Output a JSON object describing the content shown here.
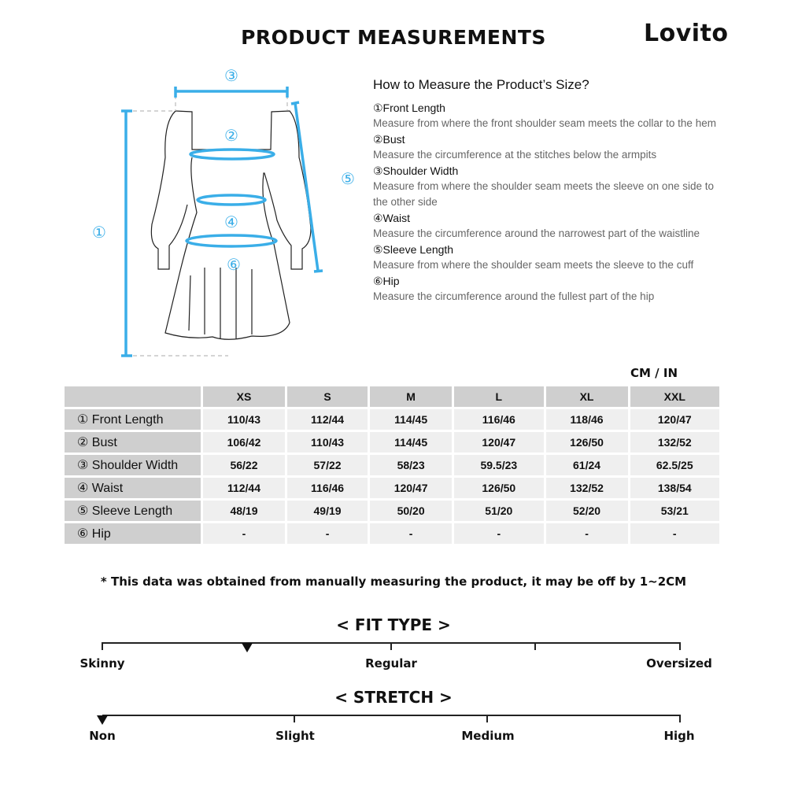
{
  "header": {
    "title": "PRODUCT MEASUREMENTS",
    "logo": "Lovito"
  },
  "diagram": {
    "markers": [
      "①",
      "②",
      "③",
      "④",
      "⑤",
      "⑥"
    ],
    "accent_color": "#3aaee8"
  },
  "howto": {
    "heading": "How to Measure the Product’s Size?",
    "items": [
      {
        "name": "①Front Length",
        "desc": "Measure from where the front shoulder seam meets the collar to the hem"
      },
      {
        "name": "②Bust",
        "desc": "Measure the circumference at the stitches below the armpits"
      },
      {
        "name": "③Shoulder Width",
        "desc": "Measure from where the shoulder seam meets the sleeve on one side to the other side"
      },
      {
        "name": "④Waist",
        "desc": "Measure the circumference around the narrowest part of the waistline"
      },
      {
        "name": "⑤Sleeve Length",
        "desc": "Measure from where the shoulder seam meets the sleeve to the cuff"
      },
      {
        "name": "⑥Hip",
        "desc": "Measure the circumference around the fullest part of the hip"
      }
    ]
  },
  "table": {
    "unit": "CM / IN",
    "sizes": [
      "XS",
      "S",
      "M",
      "L",
      "XL",
      "XXL"
    ],
    "rows": [
      {
        "label": "① Front Length",
        "values": [
          "110/43",
          "112/44",
          "114/45",
          "116/46",
          "118/46",
          "120/47"
        ]
      },
      {
        "label": "② Bust",
        "values": [
          "106/42",
          "110/43",
          "114/45",
          "120/47",
          "126/50",
          "132/52"
        ]
      },
      {
        "label": "③ Shoulder Width",
        "values": [
          "56/22",
          "57/22",
          "58/23",
          "59.5/23",
          "61/24",
          "62.5/25"
        ]
      },
      {
        "label": "④ Waist",
        "values": [
          "112/44",
          "116/46",
          "120/47",
          "126/50",
          "132/52",
          "138/54"
        ]
      },
      {
        "label": "⑤ Sleeve Length",
        "values": [
          "48/19",
          "49/19",
          "50/20",
          "51/20",
          "52/20",
          "53/21"
        ]
      },
      {
        "label": "⑥ Hip",
        "values": [
          "-",
          "-",
          "-",
          "-",
          "-",
          "-"
        ]
      }
    ]
  },
  "note": "* This data was obtained from manually measuring the product, it may be off by 1~2CM",
  "fit": {
    "title": "< FIT TYPE >",
    "labels": [
      "Skinny",
      "Regular",
      "Oversized"
    ],
    "level": 0.25
  },
  "stretch": {
    "title": "< STRETCH >",
    "labels": [
      "Non",
      "Slight",
      "Medium",
      "High"
    ],
    "level": 0
  }
}
